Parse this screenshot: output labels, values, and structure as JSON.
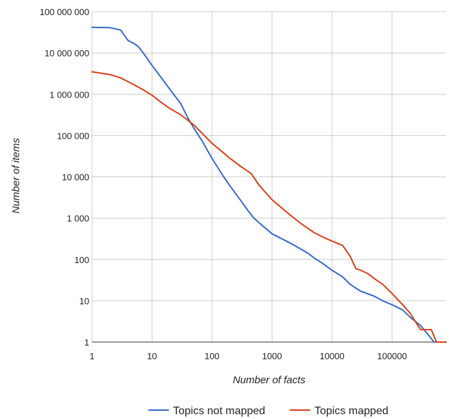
{
  "chart_data": {
    "type": "line",
    "xlabel": "Number of facts",
    "ylabel": "Number of items",
    "x_scale": "log",
    "y_scale": "log",
    "xlim": [
      1,
      800000
    ],
    "ylim": [
      1,
      100000000
    ],
    "x_ticks": [
      {
        "value": 1,
        "label": "1"
      },
      {
        "value": 10,
        "label": "10"
      },
      {
        "value": 100,
        "label": "100"
      },
      {
        "value": 1000,
        "label": "1000"
      },
      {
        "value": 10000,
        "label": "10000"
      },
      {
        "value": 100000,
        "label": "100000"
      }
    ],
    "y_ticks": [
      {
        "value": 1,
        "label": "1"
      },
      {
        "value": 10,
        "label": "10"
      },
      {
        "value": 100,
        "label": "100"
      },
      {
        "value": 1000,
        "label": "1 000"
      },
      {
        "value": 10000,
        "label": "10 000"
      },
      {
        "value": 100000,
        "label": "100 000"
      },
      {
        "value": 1000000,
        "label": "1 000 000"
      },
      {
        "value": 10000000,
        "label": "10 000 000"
      },
      {
        "value": 100000000,
        "label": "100 000 000"
      }
    ],
    "grid": true,
    "legend_position": "bottom",
    "series": [
      {
        "name": "Topics not mapped",
        "color": "#3366cc",
        "points": [
          [
            1,
            42000000
          ],
          [
            2,
            41000000
          ],
          [
            3,
            36000000
          ],
          [
            4,
            20000000
          ],
          [
            5,
            17000000
          ],
          [
            6,
            14000000
          ],
          [
            8,
            8000000
          ],
          [
            10,
            5000000
          ],
          [
            15,
            2300000
          ],
          [
            20,
            1300000
          ],
          [
            30,
            600000
          ],
          [
            40,
            260000
          ],
          [
            50,
            150000
          ],
          [
            70,
            70000
          ],
          [
            100,
            28000
          ],
          [
            150,
            11000
          ],
          [
            200,
            6000
          ],
          [
            300,
            2700
          ],
          [
            400,
            1500
          ],
          [
            500,
            1000
          ],
          [
            700,
            650
          ],
          [
            1000,
            420
          ],
          [
            1500,
            310
          ],
          [
            2000,
            250
          ],
          [
            3000,
            180
          ],
          [
            4000,
            140
          ],
          [
            5000,
            110
          ],
          [
            7000,
            80
          ],
          [
            10000,
            55
          ],
          [
            15000,
            38
          ],
          [
            20000,
            25
          ],
          [
            30000,
            17
          ],
          [
            50000,
            13
          ],
          [
            70000,
            10
          ],
          [
            100000,
            8
          ],
          [
            150000,
            6
          ],
          [
            200000,
            4
          ],
          [
            300000,
            2.5
          ],
          [
            400000,
            1.5
          ],
          [
            500000,
            1
          ],
          [
            800000,
            1
          ]
        ]
      },
      {
        "name": "Topics mapped",
        "color": "#dc3912",
        "points": [
          [
            1,
            3500000
          ],
          [
            2,
            3000000
          ],
          [
            3,
            2500000
          ],
          [
            5,
            1700000
          ],
          [
            7,
            1300000
          ],
          [
            10,
            950000
          ],
          [
            15,
            600000
          ],
          [
            20,
            450000
          ],
          [
            30,
            320000
          ],
          [
            50,
            180000
          ],
          [
            70,
            110000
          ],
          [
            100,
            65000
          ],
          [
            150,
            40000
          ],
          [
            200,
            28000
          ],
          [
            300,
            18000
          ],
          [
            450,
            12000
          ],
          [
            600,
            6500
          ],
          [
            800,
            4000
          ],
          [
            1000,
            2800
          ],
          [
            1500,
            1700
          ],
          [
            2000,
            1200
          ],
          [
            3000,
            750
          ],
          [
            5000,
            450
          ],
          [
            7000,
            350
          ],
          [
            10000,
            280
          ],
          [
            15000,
            220
          ],
          [
            20000,
            120
          ],
          [
            25000,
            60
          ],
          [
            30000,
            55
          ],
          [
            40000,
            45
          ],
          [
            50000,
            35
          ],
          [
            70000,
            25
          ],
          [
            100000,
            15
          ],
          [
            150000,
            8
          ],
          [
            200000,
            5
          ],
          [
            250000,
            3
          ],
          [
            300000,
            2
          ],
          [
            450000,
            2
          ],
          [
            550000,
            1
          ],
          [
            800000,
            1
          ]
        ]
      }
    ]
  }
}
